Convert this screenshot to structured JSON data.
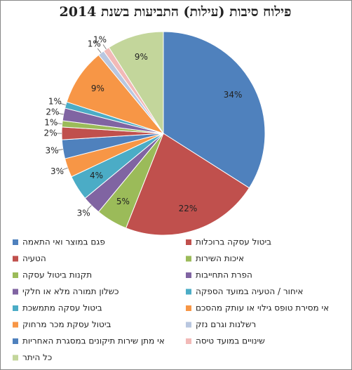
{
  "chart_data": {
    "type": "pie",
    "title": "פילוח סיבות (עילות) התביעות בשנת 2014",
    "categories": [
      "פגם במוצר ואי התאמה",
      "הטעיה",
      "תקנות ביטול עסקה",
      "כשלון תמורה מלא או חלקי",
      "ביטול עסקה מתמשכת",
      "ביטול עסקת מכר מרחוק",
      "אי מתן שירות תיקונים במסגרת האחריות",
      "כל היתר",
      "ביטול עסקה ברוכלות",
      "איכות השירות",
      "הפרת התחייבות",
      "איחור / הטעיה במועד הספקה",
      "אי מסירת טופס גילוי או עותק מהסכם",
      "רשלנות וגרם נזק",
      "שינויים במועד טיסה"
    ],
    "values": [
      34,
      22,
      5,
      3,
      4,
      3,
      3,
      9,
      2,
      1,
      2,
      1,
      9,
      1,
      1
    ],
    "value_labels": [
      "34%",
      "22%",
      "5%",
      "3%",
      "4%",
      "3%",
      "3%",
      "9%",
      "2%",
      "1%",
      "2%",
      "1%",
      "9%",
      "1%",
      "1%"
    ],
    "colors": [
      "#4f81bd",
      "#c0504d",
      "#9bbb59",
      "#8064a2",
      "#4bacc6",
      "#f79646",
      "#4f81bd",
      "#c3d69b",
      "#c0504d",
      "#9bbb59",
      "#8064a2",
      "#4bacc6",
      "#f79646",
      "#b9c7e0",
      "#f2b9b7"
    ],
    "slice_order": [
      0,
      1,
      2,
      3,
      4,
      5,
      6,
      8,
      9,
      10,
      11,
      12,
      13,
      14,
      7
    ]
  }
}
